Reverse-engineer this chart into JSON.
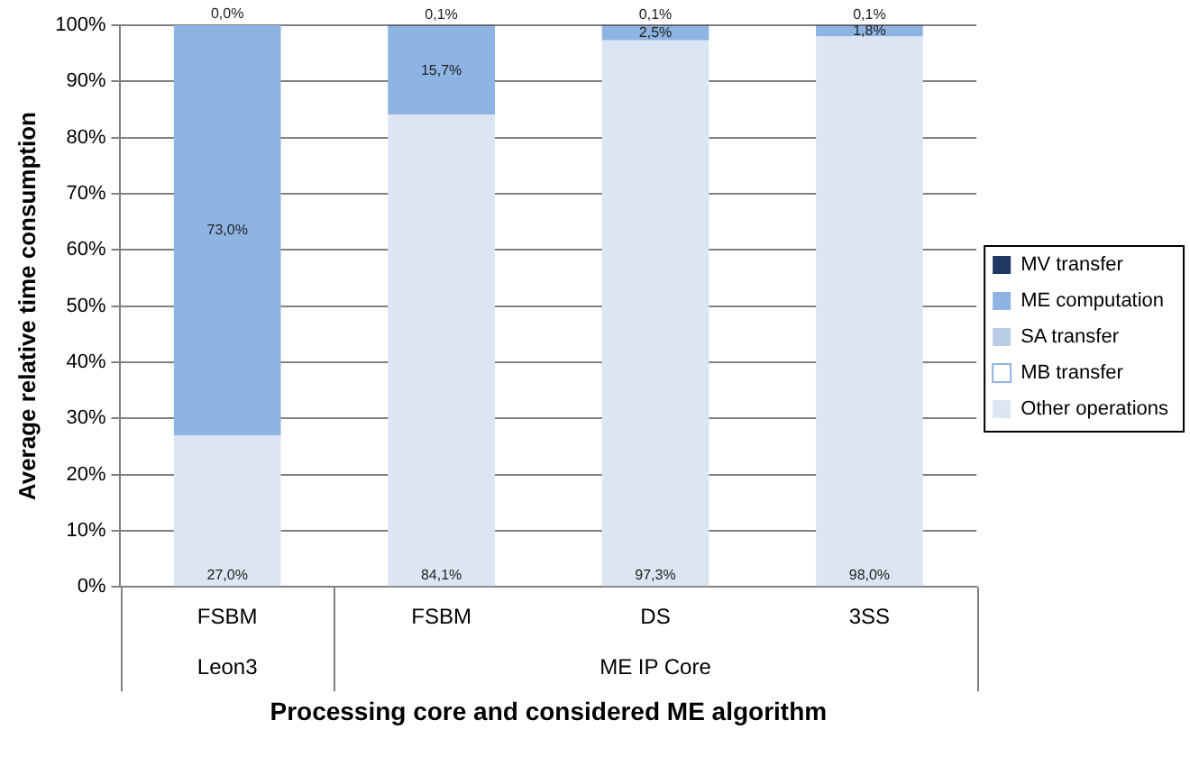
{
  "chart_data": {
    "type": "bar",
    "stacked": true,
    "xlabel": "Processing core and considered ME algorithm",
    "ylabel": "Average relative time consumption",
    "categories": [
      "FSBM",
      "FSBM",
      "DS",
      "3SS"
    ],
    "series": [
      {
        "name": "Other operations",
        "color": "#dce6f2",
        "values": [
          27.0,
          84.1,
          97.3,
          98.0
        ],
        "value_labels": [
          "27,0%",
          "84,1%",
          "97,3%",
          "98,0%"
        ]
      },
      {
        "name": "MB transfer",
        "color": "#ffffff",
        "values": [
          0,
          0,
          0,
          0
        ]
      },
      {
        "name": "SA transfer",
        "color": "#b9cde5",
        "values": [
          0,
          0,
          0,
          0
        ]
      },
      {
        "name": "ME computation",
        "color": "#8eb4e3",
        "values": [
          73.0,
          15.7,
          2.5,
          1.8
        ],
        "value_labels": [
          "73,0%",
          "15,7%",
          "2,5%",
          "1,8%"
        ]
      },
      {
        "name": "MV transfer",
        "color": "#1f3864",
        "values": [
          0.0,
          0.1,
          0.1,
          0.1
        ],
        "value_labels": [
          "0,0%",
          "0,1%",
          "0,1%",
          "0,1%"
        ]
      }
    ],
    "annotations": [
      "Leon3",
      "ME IP Core"
    ],
    "ylim": [
      0,
      100
    ],
    "yticks": [
      {
        "value": 0,
        "label": "0%"
      },
      {
        "value": 10,
        "label": "10%"
      },
      {
        "value": 20,
        "label": "20%"
      },
      {
        "value": 30,
        "label": "30%"
      },
      {
        "value": 40,
        "label": "40%"
      },
      {
        "value": 50,
        "label": "50%"
      },
      {
        "value": 60,
        "label": "60%"
      },
      {
        "value": 70,
        "label": "70%"
      },
      {
        "value": 80,
        "label": "80%"
      },
      {
        "value": 90,
        "label": "90%"
      },
      {
        "value": 100,
        "label": "100%"
      }
    ],
    "grid": "y",
    "legend": "right"
  }
}
